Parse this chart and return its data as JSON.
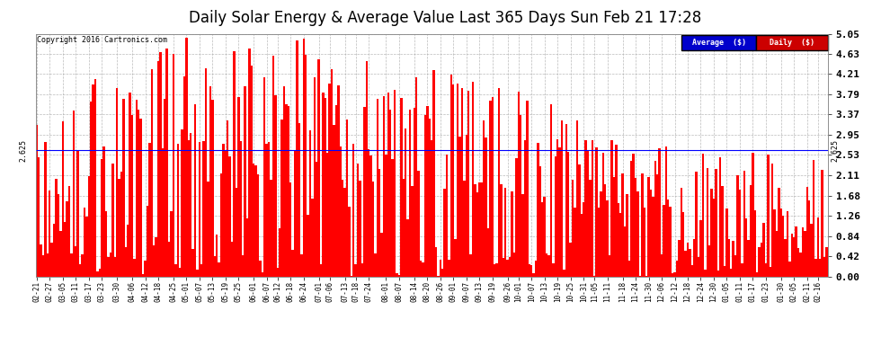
{
  "title": "Daily Solar Energy & Average Value Last 365 Days Sun Feb 21 17:28",
  "copyright_text": "Copyright 2016 Cartronics.com",
  "bar_color": "#ff0000",
  "avg_line_color": "#0000ff",
  "avg_value": 2.625,
  "avg_label": "2.625",
  "ylim": [
    0.0,
    5.05
  ],
  "yticks": [
    0.0,
    0.42,
    0.84,
    1.26,
    1.68,
    2.11,
    2.53,
    2.95,
    3.37,
    3.79,
    4.21,
    4.63,
    5.05
  ],
  "background_color": "#ffffff",
  "plot_bg_color": "#ffffff",
  "grid_color": "#aaaaaa",
  "legend_avg_bg": "#0000cc",
  "legend_daily_bg": "#cc0000",
  "legend_text_color": "#ffffff",
  "title_fontsize": 12,
  "x_dates": [
    "02-21",
    "02-27",
    "03-05",
    "03-11",
    "03-17",
    "03-23",
    "03-30",
    "04-06",
    "04-12",
    "04-18",
    "04-25",
    "05-01",
    "05-07",
    "05-13",
    "05-19",
    "05-25",
    "06-01",
    "06-07",
    "06-12",
    "06-18",
    "06-24",
    "07-01",
    "07-06",
    "07-13",
    "07-18",
    "07-24",
    "08-01",
    "08-07",
    "08-14",
    "08-20",
    "08-26",
    "09-01",
    "09-07",
    "09-13",
    "09-19",
    "09-26",
    "10-01",
    "10-07",
    "10-13",
    "10-19",
    "10-25",
    "10-31",
    "11-05",
    "11-11",
    "11-18",
    "11-24",
    "11-30",
    "12-06",
    "12-12",
    "12-18",
    "12-24",
    "12-30",
    "01-05",
    "01-11",
    "01-17",
    "01-23",
    "01-30",
    "02-05",
    "02-11",
    "02-16"
  ],
  "x_tick_positions": [
    0,
    6,
    12,
    18,
    24,
    30,
    37,
    44,
    50,
    56,
    63,
    69,
    75,
    81,
    87,
    93,
    100,
    106,
    111,
    117,
    123,
    130,
    135,
    142,
    147,
    153,
    161,
    167,
    174,
    180,
    186,
    192,
    198,
    204,
    210,
    217,
    222,
    228,
    234,
    240,
    246,
    252,
    257,
    263,
    270,
    276,
    282,
    288,
    294,
    300,
    306,
    312,
    318,
    324,
    330,
    336,
    343,
    349,
    355,
    360
  ],
  "num_bars": 365,
  "seed": 42
}
